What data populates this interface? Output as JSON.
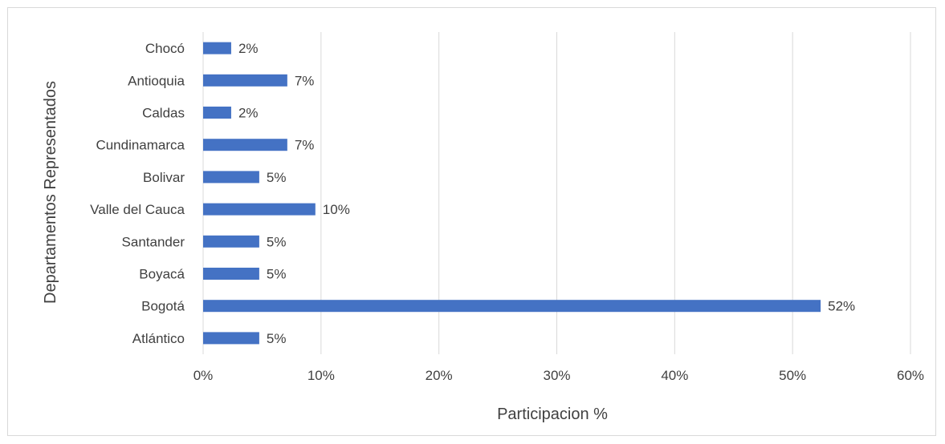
{
  "chart_data": {
    "type": "bar",
    "orientation": "horizontal",
    "title": "",
    "xlabel": "Participacion %",
    "ylabel": "Departamentos Representados",
    "categories": [
      "Atlántico",
      "Bogotá",
      "Boyacá",
      "Santander",
      "Valle del Cauca",
      "Bolivar",
      "Cundinamarca",
      "Caldas",
      "Antioquia",
      "Chocó"
    ],
    "values": [
      4.76,
      52.38,
      4.76,
      4.76,
      9.52,
      4.76,
      7.14,
      2.38,
      7.14,
      2.38
    ],
    "data_labels": [
      "5%",
      "52%",
      "5%",
      "5%",
      "10%",
      "5%",
      "7%",
      "2%",
      "7%",
      "2%"
    ],
    "xlim": [
      0,
      60
    ],
    "x_ticks": [
      0,
      10,
      20,
      30,
      40,
      50,
      60
    ],
    "x_tick_labels": [
      "0%",
      "10%",
      "20%",
      "30%",
      "40%",
      "50%",
      "60%"
    ],
    "grid": "vertical",
    "legend": "none",
    "colors": {
      "bar": "#4472c4",
      "grid": "#d9d9d9",
      "text": "#404040",
      "frame": "#d9d9d9"
    }
  }
}
